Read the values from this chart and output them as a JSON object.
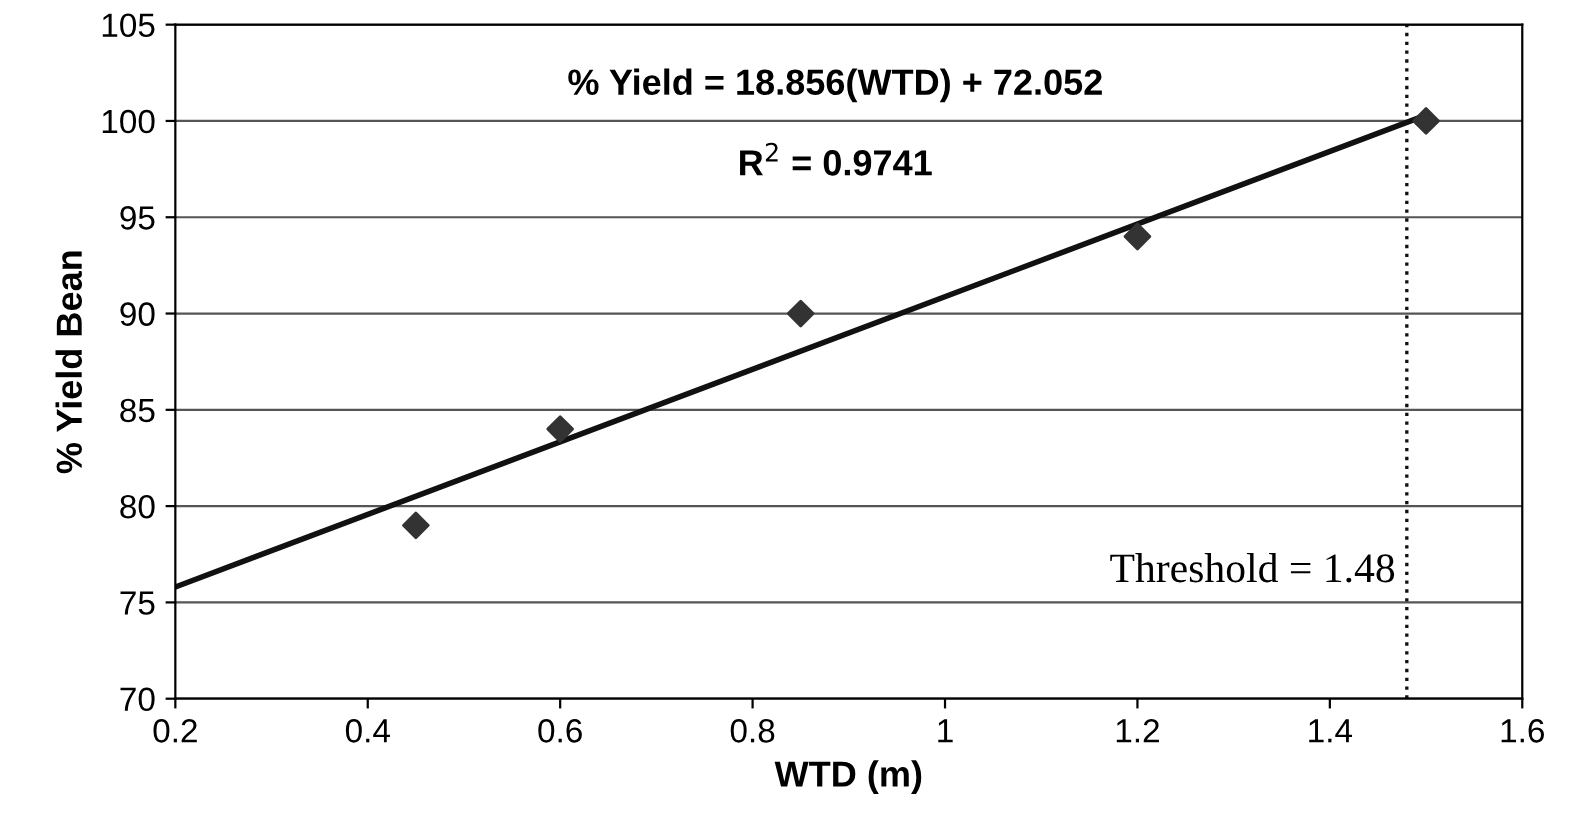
{
  "chart_data": {
    "type": "scatter",
    "xlabel": "WTD (m)",
    "ylabel": "% Yield Bean",
    "xlim": [
      0.2,
      1.6
    ],
    "xticks": [
      0.2,
      0.4,
      0.6,
      0.8,
      {
        "value": 1,
        "label": "1"
      },
      1.2,
      1.4,
      1.6
    ],
    "ylim": [
      70,
      105
    ],
    "yticks": [
      70,
      75,
      80,
      85,
      90,
      95,
      100,
      105
    ],
    "grid": "y",
    "marker": "diamond",
    "series": [
      {
        "color": "#333333",
        "x": [
          0.45,
          0.6,
          0.85,
          1.2,
          1.5
        ],
        "values": [
          79,
          84,
          90,
          94,
          100
        ]
      },
      {
        "type": "line",
        "color": "#111111",
        "x": [
          0.2,
          1.5
        ],
        "values": [
          75.8,
          100.3
        ],
        "marker": "none",
        "line_style": "solid"
      }
    ],
    "ref_lines": [
      {
        "axis": "x",
        "value": 1.48,
        "label": "Threshold = 1.48",
        "line_style": "dotted",
        "color": "#111111"
      }
    ],
    "annotations": [
      "% Yield = 18.856(WTD) + 72.052",
      "R$^{2}$ = 0.9741"
    ]
  }
}
